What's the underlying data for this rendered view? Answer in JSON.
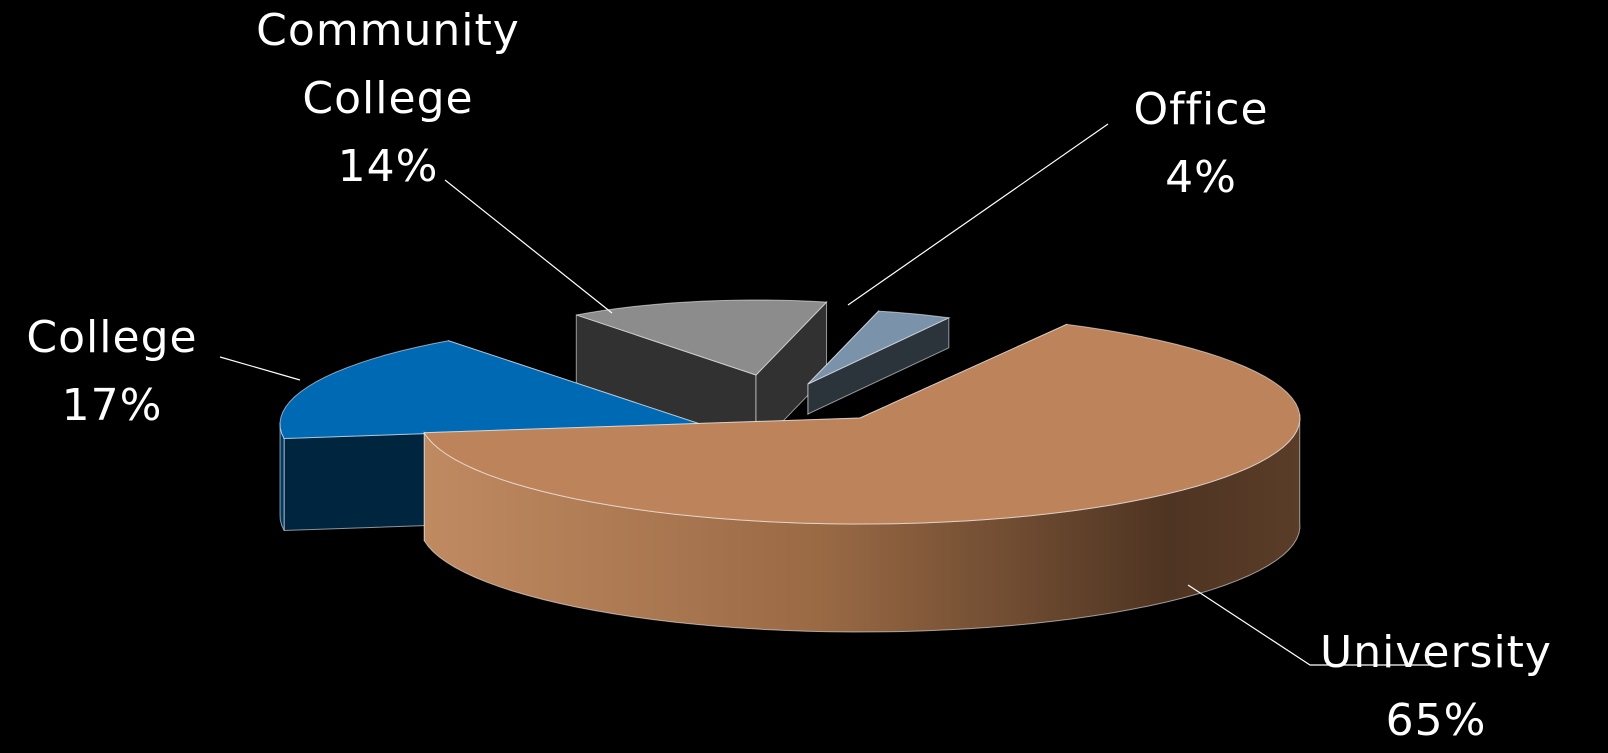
{
  "chart_data": {
    "type": "pie",
    "style": "3d-exploded",
    "background": "#000000",
    "slices": [
      {
        "category": "University",
        "category_lines": [
          "University"
        ],
        "value": 65,
        "label": "65%",
        "color": "#bd845b"
      },
      {
        "category": "College",
        "category_lines": [
          "College"
        ],
        "value": 17,
        "label": "17%",
        "color": "#0069b4"
      },
      {
        "category": "Community College",
        "category_lines": [
          "Community",
          "College"
        ],
        "value": 14,
        "label": "14%",
        "color": "#8c8c8c"
      },
      {
        "category": "Office",
        "category_lines": [
          "Office"
        ],
        "value": 4,
        "label": "4%",
        "color": "#7b93aa"
      }
    ],
    "legend": "none",
    "data_labels": "outside with leader lines"
  }
}
